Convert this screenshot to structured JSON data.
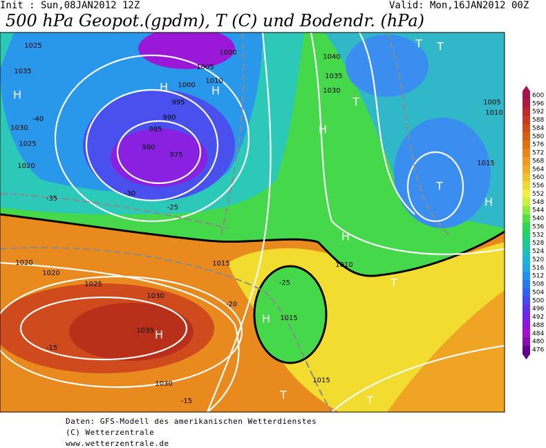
{
  "header": {
    "init": "Init : Sun,08JAN2012 12Z",
    "valid": "Valid: Mon,16JAN2012 00Z",
    "title": "500 hPa Geopot.(gpdm), T (C) und Bodendr. (hPa)"
  },
  "colorbar": {
    "levels": [
      600,
      596,
      592,
      588,
      584,
      580,
      576,
      572,
      568,
      564,
      560,
      556,
      552,
      548,
      544,
      540,
      536,
      532,
      528,
      524,
      520,
      516,
      512,
      508,
      504,
      500,
      496,
      492,
      488,
      484,
      480,
      476
    ],
    "colors": [
      "#a4124e",
      "#b41a3c",
      "#c0282a",
      "#c83a20",
      "#d04c18",
      "#d85e12",
      "#e07012",
      "#e88418",
      "#f09820",
      "#f0ac28",
      "#f0c230",
      "#f0d838",
      "#f0f040",
      "#c8f040",
      "#90e840",
      "#52e044",
      "#30d852",
      "#22d072",
      "#20c892",
      "#20c0b2",
      "#20b6d2",
      "#22a6e8",
      "#2290f0",
      "#2878f0",
      "#3260f0",
      "#4848f0",
      "#6030f0",
      "#7820f0",
      "#9012e0",
      "#a810d0",
      "#8410b0",
      "#600090"
    ]
  },
  "labels": [
    "1025",
    "1035",
    "H",
    "1030",
    "1025",
    "1020",
    "-35",
    "-40",
    "990",
    "985",
    "980",
    "975",
    "H",
    "1000",
    "1005",
    "1010",
    "H",
    "995",
    "1000",
    "-30",
    "-25",
    "1040",
    "1035",
    "1030",
    "H",
    "T",
    "1015",
    "1005",
    "1010",
    "T",
    "H",
    "T",
    "T",
    "1020",
    "1025",
    "1030",
    "1035",
    "H",
    "-15",
    "1030",
    "-15",
    "1015",
    "T",
    "T",
    "1015",
    "H",
    "1020",
    "1015",
    "-25",
    "-20",
    "1010",
    "H",
    "T"
  ],
  "footer": [
    "Daten: GFS-Modell des amerikanischen Wetterdienstes",
    "(C) Wetterzentrale",
    "www.wetterzentrale.de"
  ]
}
